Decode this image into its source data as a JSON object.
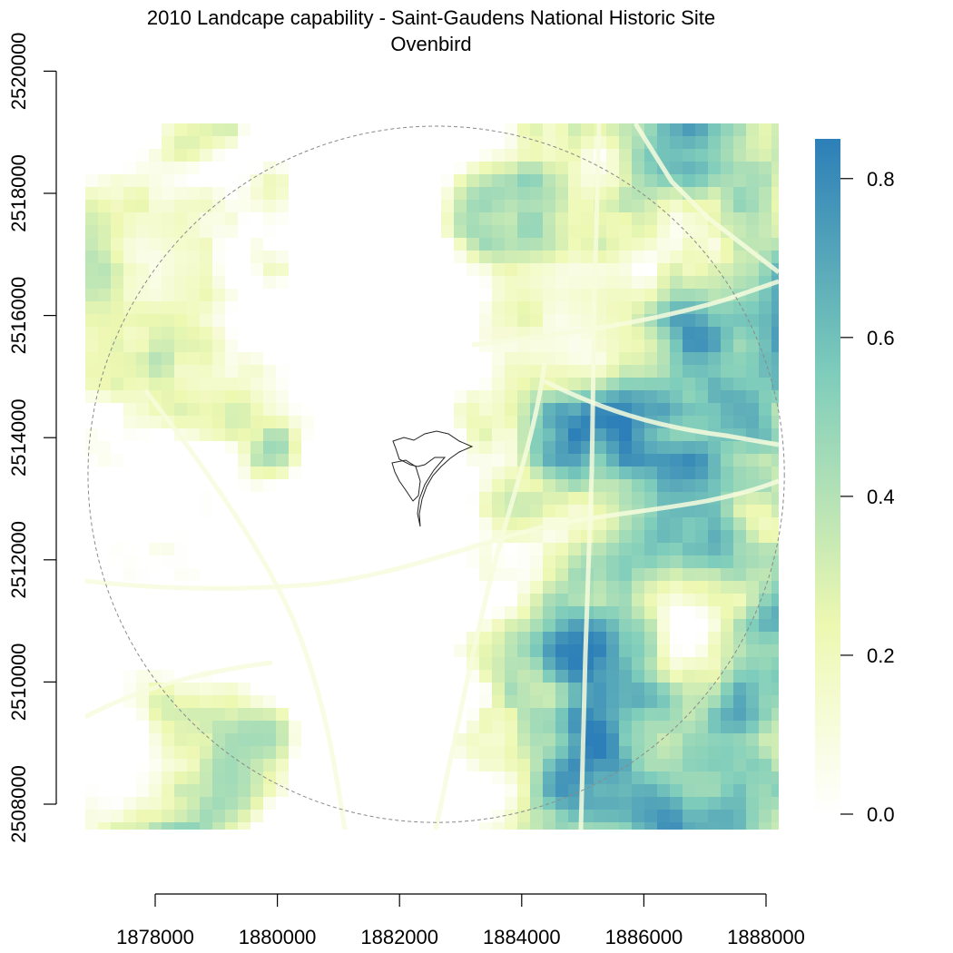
{
  "chart_data": {
    "type": "heatmap",
    "title": "2010 Landcape capability - Saint-Gaudens National Historic Site",
    "subtitle": "Ovenbird",
    "xlabel": "",
    "ylabel": "",
    "x_ticks": [
      "1878000",
      "1880000",
      "1882000",
      "1884000",
      "1886000",
      "1888000"
    ],
    "y_ticks": [
      "2508000",
      "2510000",
      "2512000",
      "2514000",
      "2516000",
      "2518000",
      "2520000"
    ],
    "xlim": [
      1876900,
      1888200
    ],
    "ylim": [
      2507700,
      2519100
    ],
    "x_axis_range": [
      1878000,
      1888000
    ],
    "y_axis_range": [
      2508000,
      2520000
    ],
    "colorbar": {
      "range": [
        0,
        0.85
      ],
      "ticks": [
        "0.0",
        "0.2",
        "0.4",
        "0.6",
        "0.8"
      ],
      "colors": [
        "#ffffff",
        "#edf8b1",
        "#7fcdbb",
        "#2c7fb8"
      ]
    },
    "features": {
      "study_area_circle": {
        "center": [
          1882600,
          2513400
        ],
        "radius": 5700
      },
      "site_boundary": "Saint-Gaudens National Historic Site"
    }
  }
}
